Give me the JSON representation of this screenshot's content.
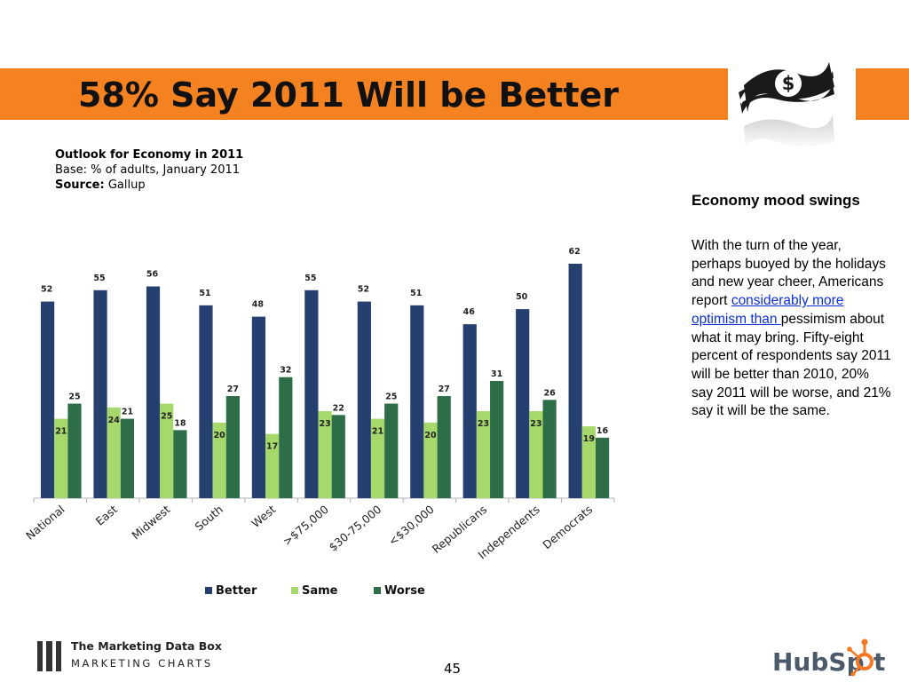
{
  "slide": {
    "title": "58% Say 2011 Will be Better",
    "page_number": "45"
  },
  "meta": {
    "chart_title": "Outlook for Economy in 2011",
    "base": "Base: % of adults, January 2011",
    "source_label": "Source:",
    "source_value": "Gallup"
  },
  "sidebar": {
    "heading": "Economy mood swings",
    "text_before": "With the turn of the year, perhaps buoyed by the holidays and new year cheer, Americans report ",
    "link_text": "considerably more optimism than ",
    "text_after": "pessimism about what it may bring. Fifty-eight percent of respondents say 2011 will be better than 2010, 20% say 2011 will be worse, and 21% say it will be the same."
  },
  "brand": {
    "line1": "The Marketing Data Box",
    "line2": "MARKETING CHARTS",
    "hubspot": "HubSpot"
  },
  "colors": {
    "banner": "#f58220",
    "better": "#253f6f",
    "same": "#a6d86c",
    "worse": "#2d6e48"
  },
  "icons": [
    "money-stack-icon"
  ],
  "chart_data": {
    "type": "bar",
    "title": "Outlook for Economy in 2011",
    "categories": [
      "National",
      "East",
      "Midwest",
      "South",
      "West",
      ">$75,000",
      "$30-75,000",
      "<$30,000",
      "Republicans",
      "Independents",
      "Democrats"
    ],
    "series": [
      {
        "name": "Better",
        "color": "#253f6f",
        "values": [
          52,
          55,
          56,
          51,
          48,
          55,
          52,
          51,
          46,
          50,
          62
        ]
      },
      {
        "name": "Same",
        "color": "#a6d86c",
        "values": [
          21,
          24,
          25,
          20,
          17,
          23,
          21,
          20,
          23,
          23,
          19
        ]
      },
      {
        "name": "Worse",
        "color": "#2d6e48",
        "values": [
          25,
          21,
          18,
          27,
          32,
          22,
          25,
          27,
          31,
          26,
          16
        ]
      }
    ],
    "ylim": [
      0,
      62
    ],
    "grid": false,
    "legend": "bottom"
  }
}
